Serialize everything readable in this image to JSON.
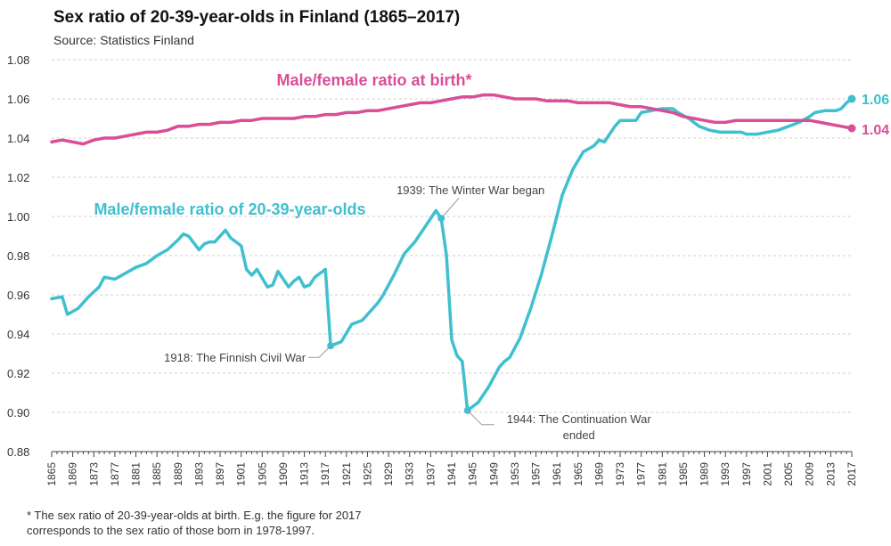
{
  "title": "Sex ratio of 20-39-year-olds in Finland (1865–2017)",
  "subtitle": "Source: Statistics Finland",
  "footnote": [
    "* The sex ratio of 20-39-year-olds at birth. E.g. the figure for 2017",
    "corresponds to the sex ratio of those born in 1978-1997."
  ],
  "colors": {
    "ratio_20_39": "#3fc0cf",
    "ratio_birth": "#d94e97"
  },
  "chart_data": {
    "type": "line",
    "xlim": [
      1865,
      2017
    ],
    "ylim": [
      0.88,
      1.08
    ],
    "y_ticks": [
      "0.88",
      "0.90",
      "0.92",
      "0.94",
      "0.96",
      "0.98",
      "1.00",
      "1.02",
      "1.04",
      "1.06",
      "1.08"
    ],
    "x_ticks": [
      "1865",
      "1869",
      "1873",
      "1877",
      "1881",
      "1885",
      "1889",
      "1893",
      "1897",
      "1901",
      "1905",
      "1909",
      "1913",
      "1917",
      "1921",
      "1925",
      "1929",
      "1933",
      "1937",
      "1941",
      "1945",
      "1949",
      "1953",
      "1957",
      "1961",
      "1965",
      "1969",
      "1973",
      "1977",
      "1981",
      "1985",
      "1989",
      "1993",
      "1997",
      "2001",
      "2005",
      "2009",
      "2013",
      "2017"
    ],
    "grid": "horizontal dashed",
    "series": [
      {
        "name": "Male/female ratio of 20-39-year-olds",
        "end_label": "1.06",
        "points": [
          [
            1865,
            0.958
          ],
          [
            1867,
            0.959
          ],
          [
            1868,
            0.95
          ],
          [
            1870,
            0.953
          ],
          [
            1872,
            0.959
          ],
          [
            1874,
            0.964
          ],
          [
            1875,
            0.969
          ],
          [
            1877,
            0.968
          ],
          [
            1879,
            0.971
          ],
          [
            1881,
            0.974
          ],
          [
            1883,
            0.976
          ],
          [
            1885,
            0.98
          ],
          [
            1887,
            0.983
          ],
          [
            1889,
            0.988
          ],
          [
            1890,
            0.991
          ],
          [
            1891,
            0.99
          ],
          [
            1893,
            0.983
          ],
          [
            1894,
            0.986
          ],
          [
            1895,
            0.987
          ],
          [
            1896,
            0.987
          ],
          [
            1898,
            0.993
          ],
          [
            1899,
            0.989
          ],
          [
            1901,
            0.985
          ],
          [
            1902,
            0.973
          ],
          [
            1903,
            0.97
          ],
          [
            1904,
            0.973
          ],
          [
            1906,
            0.964
          ],
          [
            1907,
            0.965
          ],
          [
            1908,
            0.972
          ],
          [
            1910,
            0.964
          ],
          [
            1911,
            0.967
          ],
          [
            1912,
            0.969
          ],
          [
            1913,
            0.964
          ],
          [
            1914,
            0.965
          ],
          [
            1915,
            0.969
          ],
          [
            1917,
            0.973
          ],
          [
            1918,
            0.934
          ],
          [
            1920,
            0.936
          ],
          [
            1922,
            0.945
          ],
          [
            1924,
            0.947
          ],
          [
            1926,
            0.953
          ],
          [
            1927,
            0.956
          ],
          [
            1928,
            0.96
          ],
          [
            1930,
            0.97
          ],
          [
            1932,
            0.981
          ],
          [
            1934,
            0.987
          ],
          [
            1936,
            0.995
          ],
          [
            1938,
            1.003
          ],
          [
            1939,
            0.999
          ],
          [
            1940,
            0.98
          ],
          [
            1941,
            0.937
          ],
          [
            1942,
            0.929
          ],
          [
            1943,
            0.926
          ],
          [
            1944,
            0.901
          ],
          [
            1946,
            0.905
          ],
          [
            1948,
            0.913
          ],
          [
            1950,
            0.923
          ],
          [
            1951,
            0.926
          ],
          [
            1952,
            0.928
          ],
          [
            1954,
            0.938
          ],
          [
            1956,
            0.953
          ],
          [
            1958,
            0.97
          ],
          [
            1960,
            0.99
          ],
          [
            1962,
            1.011
          ],
          [
            1964,
            1.024
          ],
          [
            1966,
            1.033
          ],
          [
            1968,
            1.036
          ],
          [
            1969,
            1.039
          ],
          [
            1970,
            1.038
          ],
          [
            1972,
            1.046
          ],
          [
            1973,
            1.049
          ],
          [
            1975,
            1.049
          ],
          [
            1976,
            1.049
          ],
          [
            1977,
            1.053
          ],
          [
            1979,
            1.054
          ],
          [
            1981,
            1.055
          ],
          [
            1983,
            1.055
          ],
          [
            1984,
            1.053
          ],
          [
            1986,
            1.05
          ],
          [
            1988,
            1.046
          ],
          [
            1990,
            1.044
          ],
          [
            1992,
            1.043
          ],
          [
            1994,
            1.043
          ],
          [
            1996,
            1.043
          ],
          [
            1997,
            1.042
          ],
          [
            1999,
            1.042
          ],
          [
            2001,
            1.043
          ],
          [
            2003,
            1.044
          ],
          [
            2005,
            1.046
          ],
          [
            2007,
            1.048
          ],
          [
            2009,
            1.051
          ],
          [
            2010,
            1.053
          ],
          [
            2012,
            1.054
          ],
          [
            2014,
            1.054
          ],
          [
            2015,
            1.055
          ],
          [
            2016,
            1.058
          ],
          [
            2017,
            1.06
          ]
        ]
      },
      {
        "name": "Male/female ratio at birth*",
        "end_label": "1.04",
        "points": [
          [
            1865,
            1.038
          ],
          [
            1867,
            1.039
          ],
          [
            1869,
            1.038
          ],
          [
            1871,
            1.037
          ],
          [
            1873,
            1.039
          ],
          [
            1875,
            1.04
          ],
          [
            1877,
            1.04
          ],
          [
            1879,
            1.041
          ],
          [
            1881,
            1.042
          ],
          [
            1883,
            1.043
          ],
          [
            1885,
            1.043
          ],
          [
            1887,
            1.044
          ],
          [
            1889,
            1.046
          ],
          [
            1891,
            1.046
          ],
          [
            1893,
            1.047
          ],
          [
            1895,
            1.047
          ],
          [
            1897,
            1.048
          ],
          [
            1899,
            1.048
          ],
          [
            1901,
            1.049
          ],
          [
            1903,
            1.049
          ],
          [
            1905,
            1.05
          ],
          [
            1907,
            1.05
          ],
          [
            1909,
            1.05
          ],
          [
            1911,
            1.05
          ],
          [
            1913,
            1.051
          ],
          [
            1915,
            1.051
          ],
          [
            1917,
            1.052
          ],
          [
            1919,
            1.052
          ],
          [
            1921,
            1.053
          ],
          [
            1923,
            1.053
          ],
          [
            1925,
            1.054
          ],
          [
            1927,
            1.054
          ],
          [
            1929,
            1.055
          ],
          [
            1931,
            1.056
          ],
          [
            1933,
            1.057
          ],
          [
            1935,
            1.058
          ],
          [
            1937,
            1.058
          ],
          [
            1939,
            1.059
          ],
          [
            1941,
            1.06
          ],
          [
            1943,
            1.061
          ],
          [
            1945,
            1.061
          ],
          [
            1947,
            1.062
          ],
          [
            1949,
            1.062
          ],
          [
            1951,
            1.061
          ],
          [
            1953,
            1.06
          ],
          [
            1955,
            1.06
          ],
          [
            1957,
            1.06
          ],
          [
            1959,
            1.059
          ],
          [
            1961,
            1.059
          ],
          [
            1963,
            1.059
          ],
          [
            1965,
            1.058
          ],
          [
            1967,
            1.058
          ],
          [
            1969,
            1.058
          ],
          [
            1971,
            1.058
          ],
          [
            1973,
            1.057
          ],
          [
            1975,
            1.056
          ],
          [
            1977,
            1.056
          ],
          [
            1979,
            1.055
          ],
          [
            1981,
            1.054
          ],
          [
            1983,
            1.053
          ],
          [
            1985,
            1.051
          ],
          [
            1987,
            1.05
          ],
          [
            1989,
            1.049
          ],
          [
            1991,
            1.048
          ],
          [
            1993,
            1.048
          ],
          [
            1995,
            1.049
          ],
          [
            1997,
            1.049
          ],
          [
            1999,
            1.049
          ],
          [
            2001,
            1.049
          ],
          [
            2003,
            1.049
          ],
          [
            2005,
            1.049
          ],
          [
            2007,
            1.049
          ],
          [
            2009,
            1.049
          ],
          [
            2011,
            1.048
          ],
          [
            2013,
            1.047
          ],
          [
            2015,
            1.046
          ],
          [
            2017,
            1.045
          ]
        ]
      }
    ],
    "annotations": [
      {
        "text": "1918: The Finnish Civil War",
        "x": 1918,
        "y": 0.934,
        "align": "left-below"
      },
      {
        "text": "1939: The Winter War began",
        "x": 1939,
        "y": 0.999,
        "align": "above"
      },
      {
        "text": "1944: The Continuation War ended",
        "lines": [
          "1944: The Continuation War",
          "ended"
        ],
        "x": 1944,
        "y": 0.901,
        "align": "right-below"
      }
    ]
  }
}
